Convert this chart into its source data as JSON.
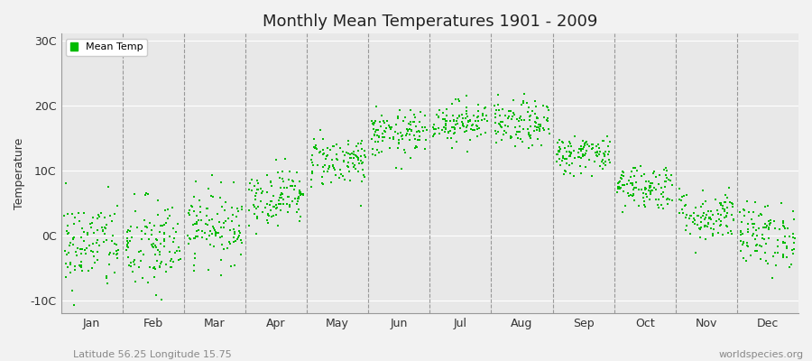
{
  "title": "Monthly Mean Temperatures 1901 - 2009",
  "ylabel": "Temperature",
  "ytick_labels": [
    "-10C",
    "0C",
    "10C",
    "20C",
    "30C"
  ],
  "ytick_values": [
    -10,
    0,
    10,
    20,
    30
  ],
  "ylim": [
    -12,
    31
  ],
  "months": [
    "Jan",
    "Feb",
    "Mar",
    "Apr",
    "May",
    "Jun",
    "Jul",
    "Aug",
    "Sep",
    "Oct",
    "Nov",
    "Dec"
  ],
  "month_means": [
    -1.5,
    -1.8,
    1.5,
    6.0,
    11.5,
    15.5,
    17.5,
    17.0,
    12.5,
    7.5,
    3.0,
    0.0
  ],
  "month_stds": [
    3.5,
    3.8,
    2.8,
    2.2,
    2.0,
    1.8,
    1.6,
    1.8,
    1.5,
    1.8,
    2.0,
    2.5
  ],
  "n_years": 109,
  "dot_color": "#00bb00",
  "dot_size": 3,
  "bg_color": "#f2f2f2",
  "plot_bg_color": "#e8e8e8",
  "grid_color": "#777777",
  "subtitle_left": "Latitude 56.25 Longitude 15.75",
  "subtitle_right": "worldspecies.org",
  "legend_label": "Mean Temp",
  "seed": 42
}
